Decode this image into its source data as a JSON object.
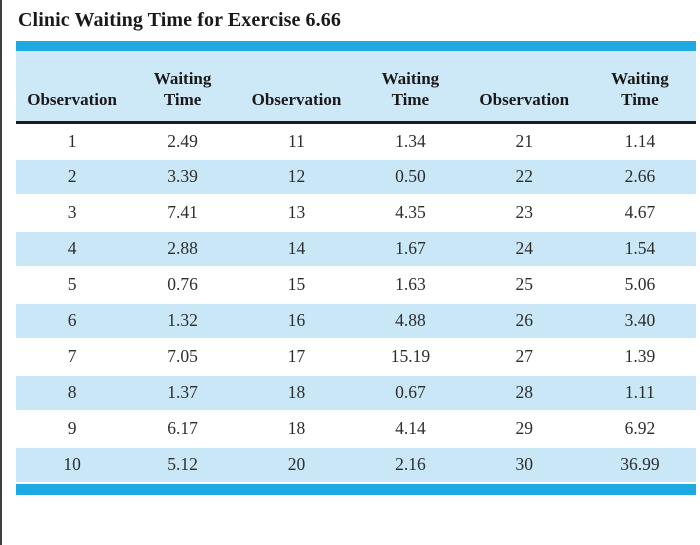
{
  "page": {
    "title": "Clinic Waiting Time for Exercise 6.66"
  },
  "colors": {
    "accent_bar": "#1ea9e3",
    "header_bg": "#cde9f8",
    "stripe_bg": "#c9e7f7",
    "header_rule": "#1c1c1c",
    "text": "#2d2d2d",
    "title_text": "#191919",
    "scan_edge": "#3f3f3a"
  },
  "table": {
    "headers": [
      "Observation",
      "Waiting\nTime",
      "Observation",
      "Waiting\nTime",
      "Observation",
      "Waiting\nTime"
    ],
    "rows": [
      [
        "1",
        "2.49",
        "11",
        "1.34",
        "21",
        "1.14"
      ],
      [
        "2",
        "3.39",
        "12",
        "0.50",
        "22",
        "2.66"
      ],
      [
        "3",
        "7.41",
        "13",
        "4.35",
        "23",
        "4.67"
      ],
      [
        "4",
        "2.88",
        "14",
        "1.67",
        "24",
        "1.54"
      ],
      [
        "5",
        "0.76",
        "15",
        "1.63",
        "25",
        "5.06"
      ],
      [
        "6",
        "1.32",
        "16",
        "4.88",
        "26",
        "3.40"
      ],
      [
        "7",
        "7.05",
        "17",
        "15.19",
        "27",
        "1.39"
      ],
      [
        "8",
        "1.37",
        "18",
        "0.67",
        "28",
        "1.11"
      ],
      [
        "9",
        "6.17",
        "18",
        "4.14",
        "29",
        "6.92"
      ],
      [
        "10",
        "5.12",
        "20",
        "2.16",
        "30",
        "36.99"
      ]
    ]
  },
  "chart_data": {
    "type": "table",
    "title": "Clinic Waiting Time for Exercise 6.66",
    "columns": [
      "Observation",
      "Waiting Time",
      "Observation",
      "Waiting Time",
      "Observation",
      "Waiting Time"
    ],
    "observation_labels_as_printed": [
      1,
      2,
      3,
      4,
      5,
      6,
      7,
      8,
      9,
      10,
      11,
      12,
      13,
      14,
      15,
      16,
      17,
      18,
      18,
      20,
      21,
      22,
      23,
      24,
      25,
      26,
      27,
      28,
      29,
      30
    ],
    "waiting_times_in_order": [
      2.49,
      3.39,
      7.41,
      2.88,
      0.76,
      1.32,
      7.05,
      1.37,
      6.17,
      5.12,
      1.34,
      0.5,
      4.35,
      1.67,
      1.63,
      4.88,
      15.19,
      0.67,
      4.14,
      2.16,
      1.14,
      2.66,
      4.67,
      1.54,
      5.06,
      3.4,
      1.39,
      1.11,
      6.92,
      36.99
    ]
  }
}
